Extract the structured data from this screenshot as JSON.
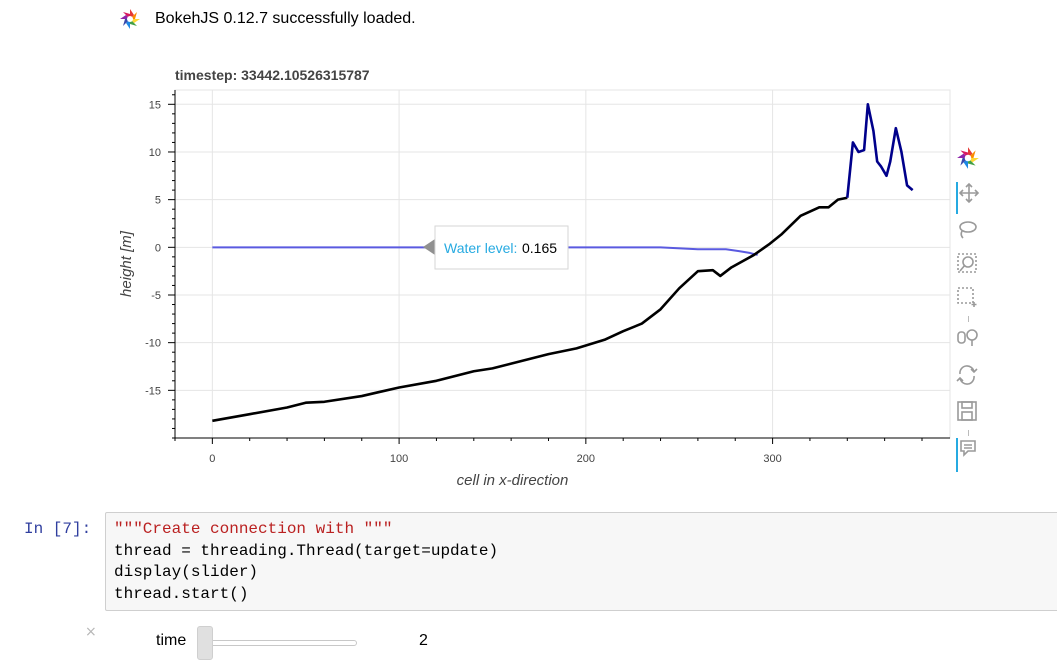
{
  "banner": {
    "message": "BokehJS 0.12.7 successfully loaded."
  },
  "plot": {
    "title": "timestep: 33442.10526315787",
    "tooltip": {
      "label": "Water level:",
      "value": "0.165"
    },
    "toolbar_icons": [
      "bokeh-logo-icon",
      "pan-icon",
      "lasso-select-icon",
      "zoom-icon",
      "box-select-icon",
      "wheel-zoom-icon",
      "reset-icon",
      "save-icon",
      "hover-icon"
    ]
  },
  "chart_data": {
    "type": "line",
    "xlabel": "cell in x-direction",
    "ylabel": "height [m]",
    "xlim": [
      -20,
      395
    ],
    "ylim": [
      -20,
      16.5
    ],
    "x_ticks": [
      0,
      100,
      200,
      300
    ],
    "y_ticks": [
      15,
      10,
      5,
      0,
      -5,
      -10,
      -15
    ],
    "grid": true,
    "series": [
      {
        "color": "#5a5ae0",
        "x": [
          0,
          60,
          120,
          180,
          240,
          260,
          275,
          282,
          288,
          292
        ],
        "y": [
          0.0,
          0.0,
          0.0,
          0.0,
          0.0,
          -0.2,
          -0.2,
          -0.4,
          -0.6,
          -0.8
        ]
      },
      {
        "color": "#000000",
        "x": [
          0,
          20,
          40,
          50,
          60,
          80,
          100,
          120,
          140,
          150,
          160,
          180,
          195,
          210,
          220,
          230,
          240,
          250,
          260,
          268,
          272,
          278,
          290,
          298,
          305,
          315,
          325,
          330,
          335,
          340
        ],
        "y": [
          -18.2,
          -17.5,
          -16.8,
          -16.3,
          -16.2,
          -15.6,
          -14.7,
          -14.0,
          -13.0,
          -12.7,
          -12.2,
          -11.2,
          -10.6,
          -9.7,
          -8.8,
          -8.0,
          -6.5,
          -4.3,
          -2.5,
          -2.4,
          -3.0,
          -2.1,
          -0.8,
          0.3,
          1.4,
          3.3,
          4.2,
          4.2,
          5.0,
          5.2
        ]
      },
      {
        "color": "#00008b",
        "x": [
          340,
          343,
          346,
          349,
          351,
          354,
          356,
          358,
          361,
          363,
          366,
          369,
          372,
          375
        ],
        "y": [
          5.2,
          11.0,
          10.0,
          10.2,
          15.0,
          12.2,
          9.0,
          8.5,
          7.5,
          9.0,
          12.5,
          10.0,
          6.5,
          6.0
        ]
      }
    ]
  },
  "cell": {
    "prompt": "In [7]:",
    "code_lines": [
      "\"\"\"Create connection with \"\"\"",
      "thread = threading.Thread(target=update)",
      "display(slider)",
      "thread.start()"
    ]
  },
  "widget": {
    "close_glyph": "×",
    "label": "time",
    "value": "2",
    "slider_min_fraction": 0.0
  }
}
